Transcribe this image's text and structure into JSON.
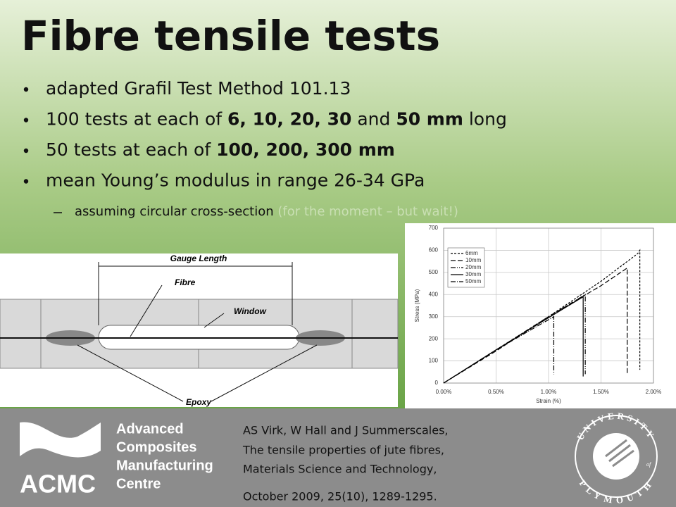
{
  "slide": {
    "title": "Fibre tensile tests",
    "bullets": [
      {
        "level": 1,
        "segments": [
          {
            "text": "adapted Grafil Test Method 101.13"
          }
        ]
      },
      {
        "level": 1,
        "segments": [
          {
            "text": "100 tests at each of "
          },
          {
            "text": "6, 10, 20, 30",
            "bold": true
          },
          {
            "text": " and "
          },
          {
            "text": "50 mm",
            "bold": true
          },
          {
            "text": " long"
          }
        ]
      },
      {
        "level": 1,
        "segments": [
          {
            "text": "50 tests at each of "
          },
          {
            "text": "100, 200, 300 mm",
            "bold": true
          }
        ]
      },
      {
        "level": 1,
        "segments": [
          {
            "text": "mean Young’s modulus in range 26-34 GPa"
          }
        ]
      },
      {
        "level": 2,
        "segments": [
          {
            "text": "assuming circular cross-section "
          },
          {
            "text": "(for the moment – but wait!)",
            "faint": true
          }
        ]
      }
    ]
  },
  "diagram": {
    "labels": [
      "Gauge Length",
      "Fibre",
      "Window",
      "Epoxy"
    ]
  },
  "chart_data": {
    "type": "line",
    "xlabel": "Strain (%)",
    "ylabel": "Stress (MPa)",
    "xlim": [
      0,
      2
    ],
    "ylim": [
      0,
      700
    ],
    "xticks": [
      {
        "value": 0,
        "label": "0.00%"
      },
      {
        "value": 0.5,
        "label": "0.50%"
      },
      {
        "value": 1,
        "label": "1.00%"
      },
      {
        "value": 1.5,
        "label": "1.50%"
      },
      {
        "value": 2,
        "label": "2.00%"
      }
    ],
    "yticks": [
      0,
      100,
      200,
      300,
      400,
      500,
      600,
      700
    ],
    "grid": true,
    "legend": "top-left",
    "series": [
      {
        "name": "6mm",
        "color": "#000000",
        "line_style": "dashed",
        "x": [
          0,
          0.5,
          1.0,
          1.5,
          1.85,
          1.87,
          1.87
        ],
        "values": [
          0,
          150,
          300,
          460,
          585,
          600,
          60
        ]
      },
      {
        "name": "10mm",
        "color": "#000000",
        "line_style": "longdash",
        "x": [
          0,
          0.5,
          1.0,
          1.5,
          1.75,
          1.75
        ],
        "values": [
          0,
          145,
          300,
          440,
          520,
          40
        ]
      },
      {
        "name": "20mm",
        "color": "#000000",
        "line_style": "dashdotdot",
        "x": [
          0,
          0.5,
          1.0,
          1.35,
          1.35
        ],
        "values": [
          0,
          150,
          300,
          400,
          40
        ]
      },
      {
        "name": "30mm",
        "color": "#000000",
        "line_style": "solid",
        "x": [
          0,
          0.5,
          1.0,
          1.33,
          1.33
        ],
        "values": [
          0,
          150,
          295,
          390,
          30
        ]
      },
      {
        "name": "50mm",
        "color": "#000000",
        "line_style": "dashdot",
        "x": [
          0,
          0.5,
          1.05,
          1.05
        ],
        "values": [
          0,
          150,
          300,
          40
        ]
      }
    ]
  },
  "footer": {
    "logo_lines": [
      "Advanced",
      "Composites",
      "Manufacturing",
      "Centre"
    ],
    "logo_acronym": "ACMC",
    "citation": [
      "AS Virk, W Hall and J Summerscales,",
      "The tensile properties of jute fibres,",
      "Materials Science and Technology,",
      "October 2009, 25(10), 1289-1295."
    ],
    "university": [
      "UNIVERSITY",
      "of",
      "PLYMOUTH"
    ]
  }
}
